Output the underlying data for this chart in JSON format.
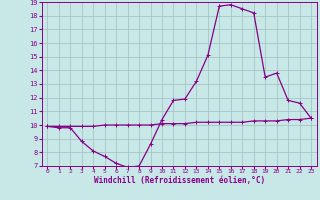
{
  "xlabel": "Windchill (Refroidissement éolien,°C)",
  "x_temp": [
    0,
    1,
    2,
    3,
    4,
    5,
    6,
    7,
    8,
    9,
    10,
    11,
    12,
    13,
    14,
    15,
    16,
    17,
    18,
    19,
    20,
    21,
    22,
    23
  ],
  "y_temp": [
    9.9,
    9.9,
    9.9,
    9.9,
    9.9,
    10.0,
    10.0,
    10.0,
    10.0,
    10.0,
    10.1,
    10.1,
    10.1,
    10.2,
    10.2,
    10.2,
    10.2,
    10.2,
    10.3,
    10.3,
    10.3,
    10.4,
    10.4,
    10.5
  ],
  "x_wind": [
    0,
    1,
    2,
    3,
    4,
    5,
    6,
    7,
    8,
    9,
    10,
    11,
    12,
    13,
    14,
    15,
    16,
    17,
    18,
    19,
    20,
    21,
    22,
    23
  ],
  "y_wind": [
    9.9,
    9.8,
    9.8,
    8.8,
    8.1,
    7.7,
    7.2,
    6.9,
    7.0,
    8.6,
    10.4,
    11.8,
    11.9,
    13.2,
    15.1,
    18.7,
    18.8,
    18.5,
    18.2,
    13.5,
    13.8,
    11.8,
    11.6,
    10.5
  ],
  "ylim": [
    7,
    19
  ],
  "xlim_min": -0.5,
  "xlim_max": 23.5,
  "yticks": [
    7,
    8,
    9,
    10,
    11,
    12,
    13,
    14,
    15,
    16,
    17,
    18,
    19
  ],
  "xticks": [
    0,
    1,
    2,
    3,
    4,
    5,
    6,
    7,
    8,
    9,
    10,
    11,
    12,
    13,
    14,
    15,
    16,
    17,
    18,
    19,
    20,
    21,
    22,
    23
  ],
  "line_color": "#880088",
  "bg_color": "#c8e8e8",
  "grid_color": "#9fbfbf",
  "marker_size": 3,
  "linewidth": 0.9
}
